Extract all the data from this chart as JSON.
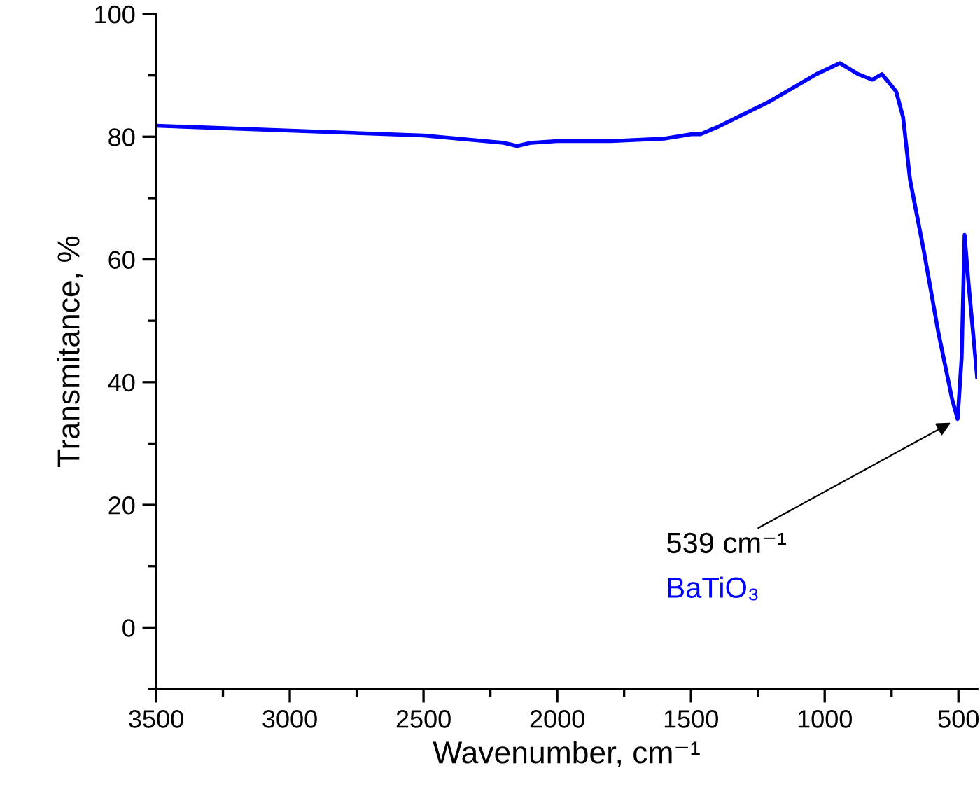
{
  "chart_data": {
    "type": "line",
    "xlabel": "Wavenumber, cm⁻¹",
    "ylabel": "Transmitance, %",
    "xlim": [
      3500,
      430
    ],
    "xticks": [
      3500,
      3000,
      2500,
      2000,
      1500,
      1000,
      500
    ],
    "ylim": [
      -10,
      100
    ],
    "yticks": [
      0,
      20,
      40,
      60,
      80,
      100
    ],
    "grid": false,
    "legend": false,
    "series": [
      {
        "name": "BaTiO₃",
        "color": "#0000ff",
        "x": [
          3500,
          3000,
          2500,
          2200,
          2150,
          2100,
          2000,
          1800,
          1600,
          1500,
          1465,
          1400,
          1204,
          1031,
          943,
          875,
          822,
          786,
          733,
          707,
          681,
          629,
          576,
          524,
          503,
          488,
          477,
          462,
          430
        ],
        "values": [
          81.8,
          81,
          80.2,
          79,
          78.5,
          79,
          79.3,
          79.3,
          79.7,
          80.4,
          80.4,
          81.6,
          85.8,
          90.2,
          92,
          90.2,
          89.3,
          90.2,
          87.4,
          83.2,
          73,
          61.3,
          48.3,
          37.3,
          34,
          44,
          64,
          56,
          40.8
        ]
      }
    ],
    "annotations": [
      {
        "text": "539 cm⁻¹",
        "x": 503,
        "y": 34
      }
    ]
  }
}
